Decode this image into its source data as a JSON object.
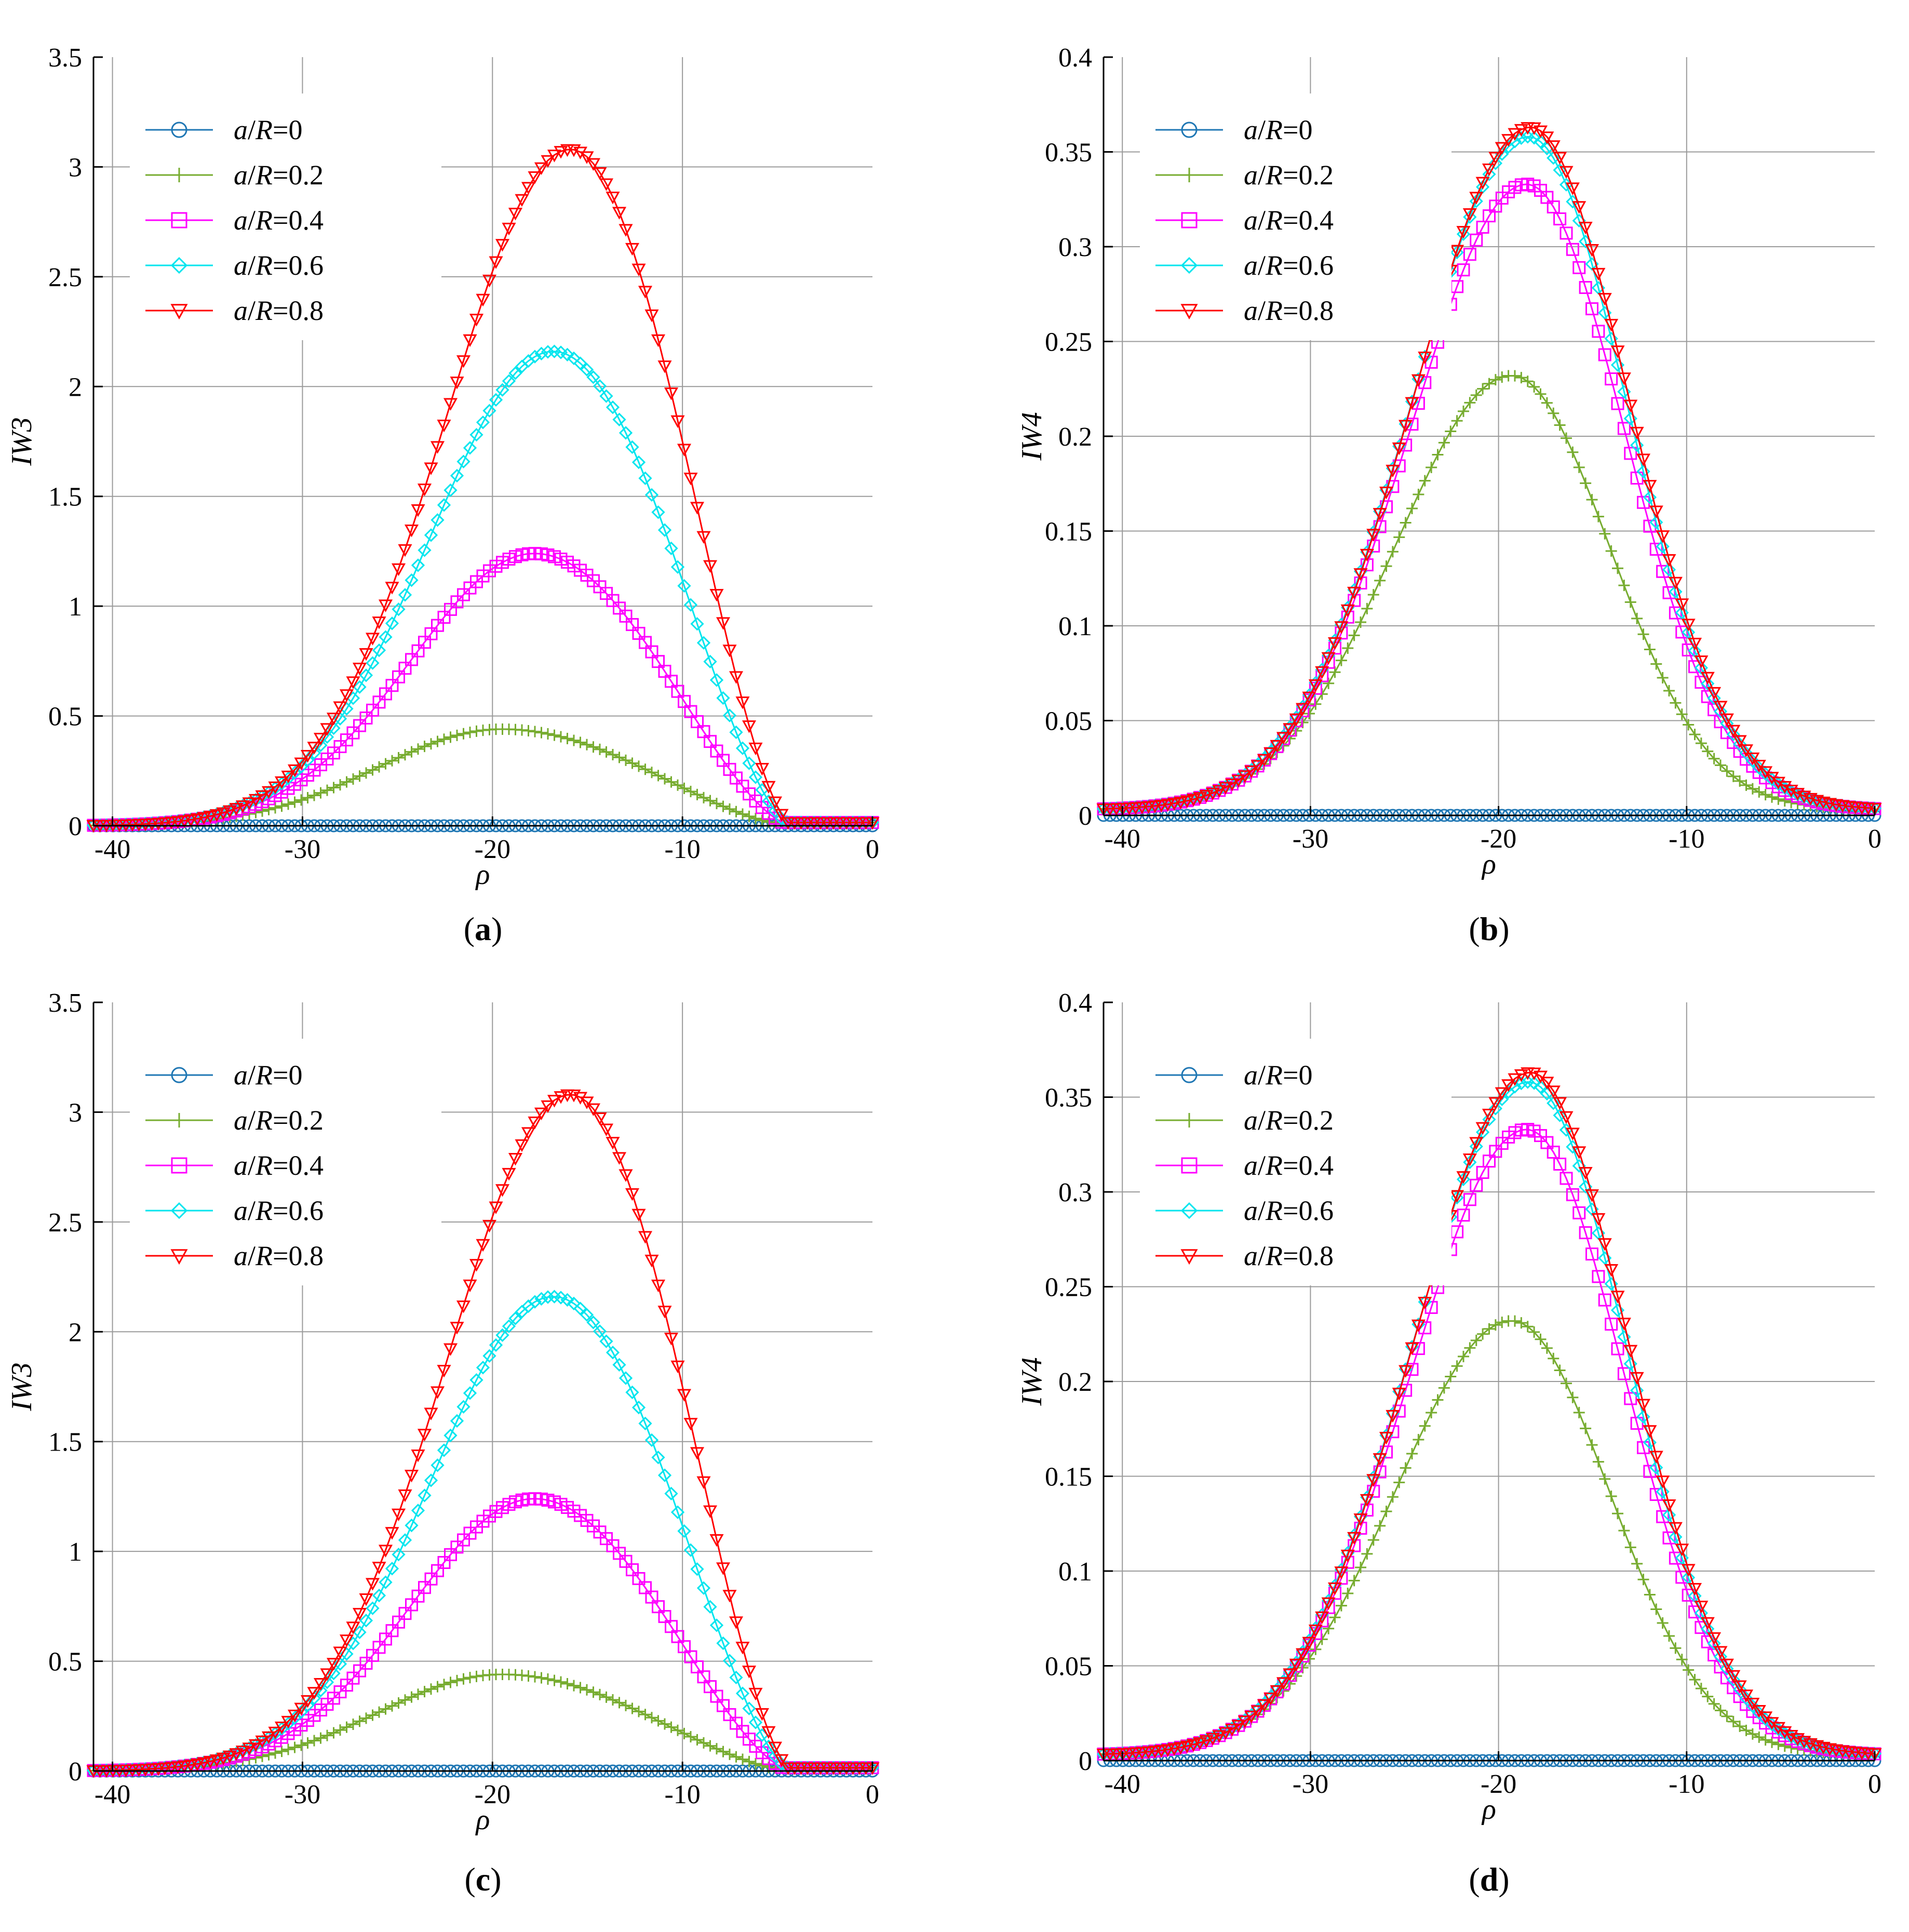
{
  "figure": {
    "panels": [
      "a",
      "b",
      "c",
      "d"
    ]
  },
  "chart_data": [
    {
      "id": "a",
      "type": "line",
      "caption": "a",
      "xlabel": "ρ",
      "ylabel": "IW3",
      "xlim": [
        -41,
        0
      ],
      "ylim": [
        0,
        3.5
      ],
      "xticks": [
        -40,
        -30,
        -20,
        -10,
        0
      ],
      "xtick_labels": [
        "-40",
        "-30",
        "-20",
        "-10",
        "0"
      ],
      "yticks": [
        0,
        0.5,
        1,
        1.5,
        2,
        2.5,
        3,
        3.5
      ],
      "ytick_labels": [
        "0",
        "0.5",
        "1",
        "1.5",
        "2",
        "2.5",
        "3",
        "3.5"
      ],
      "grid": true,
      "legend_position": "top-left",
      "curve_model": {
        "kind": "skewed-peak",
        "zero_at": -4.2,
        "sigma_left": 6.5,
        "floor_right": 0.015
      },
      "series": [
        {
          "name": "a/R=0",
          "prefix": "a",
          "suffix": "=0",
          "color": "#1f77b4",
          "marker": "circle",
          "peak": 0.0,
          "peak_x": -18.0
        },
        {
          "name": "a/R=0.2",
          "prefix": "a",
          "suffix": "=0.2",
          "color": "#77ac30",
          "marker": "plus",
          "peak": 0.44,
          "peak_x": -19.5
        },
        {
          "name": "a/R=0.4",
          "prefix": "a",
          "suffix": "=0.4",
          "color": "#ff00ff",
          "marker": "square",
          "peak": 1.24,
          "peak_x": -17.8
        },
        {
          "name": "a/R=0.6",
          "prefix": "a",
          "suffix": "=0.6",
          "color": "#00e5ee",
          "marker": "diamond",
          "peak": 2.16,
          "peak_x": -16.8
        },
        {
          "name": "a/R=0.8",
          "prefix": "a",
          "suffix": "=0.8",
          "color": "#ff0000",
          "marker": "triangle-down",
          "peak": 3.08,
          "peak_x": -15.9
        }
      ]
    },
    {
      "id": "b",
      "type": "line",
      "caption": "b",
      "xlabel": "ρ",
      "ylabel": "IW4",
      "xlim": [
        -41,
        0
      ],
      "ylim": [
        0,
        0.4
      ],
      "xticks": [
        -40,
        -30,
        -20,
        -10,
        0
      ],
      "xtick_labels": [
        "-40",
        "-30",
        "-20",
        "-10",
        "0"
      ],
      "yticks": [
        0,
        0.05,
        0.1,
        0.15,
        0.2,
        0.25,
        0.3,
        0.35,
        0.4
      ],
      "ytick_labels": [
        "0",
        "0.05",
        "0.1",
        "0.15",
        "0.2",
        "0.25",
        "0.3",
        "0.35",
        "0.4"
      ],
      "grid": true,
      "legend_position": "top-left",
      "curve_model": {
        "kind": "gaussian",
        "sigma_left": 6.2,
        "sigma_right": 5.2,
        "baseline": 0.003
      },
      "series": [
        {
          "name": "a/R=0",
          "prefix": "a",
          "suffix": "=0",
          "color": "#1f77b4",
          "marker": "circle",
          "peak": 0.0,
          "peak_x": -19.0
        },
        {
          "name": "a/R=0.2",
          "prefix": "a",
          "suffix": "=0.2",
          "color": "#77ac30",
          "marker": "plus",
          "peak": 0.232,
          "peak_x": -19.3
        },
        {
          "name": "a/R=0.4",
          "prefix": "a",
          "suffix": "=0.4",
          "color": "#ff00ff",
          "marker": "square",
          "peak": 0.333,
          "peak_x": -18.5
        },
        {
          "name": "a/R=0.6",
          "prefix": "a",
          "suffix": "=0.6",
          "color": "#00e5ee",
          "marker": "diamond",
          "peak": 0.358,
          "peak_x": -18.4
        },
        {
          "name": "a/R=0.8",
          "prefix": "a",
          "suffix": "=0.8",
          "color": "#ff0000",
          "marker": "triangle-down",
          "peak": 0.363,
          "peak_x": -18.3
        }
      ]
    },
    {
      "id": "c",
      "type": "line",
      "caption": "c",
      "xlabel": "ρ",
      "ylabel": "IW3",
      "xlim": [
        -41,
        0
      ],
      "ylim": [
        0,
        3.5
      ],
      "xticks": [
        -40,
        -30,
        -20,
        -10,
        0
      ],
      "xtick_labels": [
        "-40",
        "-30",
        "-20",
        "-10",
        "0"
      ],
      "yticks": [
        0,
        0.5,
        1,
        1.5,
        2,
        2.5,
        3,
        3.5
      ],
      "ytick_labels": [
        "0",
        "0.5",
        "1",
        "1.5",
        "2",
        "2.5",
        "3",
        "3.5"
      ],
      "grid": true,
      "legend_position": "top-left",
      "curve_model": {
        "kind": "skewed-peak",
        "zero_at": -4.2,
        "sigma_left": 6.5,
        "floor_right": 0.015
      },
      "series": [
        {
          "name": "a/R=0",
          "prefix": "a",
          "suffix": "=0",
          "color": "#1f77b4",
          "marker": "circle",
          "peak": 0.0,
          "peak_x": -18.0
        },
        {
          "name": "a/R=0.2",
          "prefix": "a",
          "suffix": "=0.2",
          "color": "#77ac30",
          "marker": "plus",
          "peak": 0.44,
          "peak_x": -19.5
        },
        {
          "name": "a/R=0.4",
          "prefix": "a",
          "suffix": "=0.4",
          "color": "#ff00ff",
          "marker": "square",
          "peak": 1.24,
          "peak_x": -17.8
        },
        {
          "name": "a/R=0.6",
          "prefix": "a",
          "suffix": "=0.6",
          "color": "#00e5ee",
          "marker": "diamond",
          "peak": 2.16,
          "peak_x": -16.8
        },
        {
          "name": "a/R=0.8",
          "prefix": "a",
          "suffix": "=0.8",
          "color": "#ff0000",
          "marker": "triangle-down",
          "peak": 3.08,
          "peak_x": -15.9
        }
      ]
    },
    {
      "id": "d",
      "type": "line",
      "caption": "d",
      "xlabel": "ρ",
      "ylabel": "IW4",
      "xlim": [
        -41,
        0
      ],
      "ylim": [
        0,
        0.4
      ],
      "xticks": [
        -40,
        -30,
        -20,
        -10,
        0
      ],
      "xtick_labels": [
        "-40",
        "-30",
        "-20",
        "-10",
        "0"
      ],
      "yticks": [
        0,
        0.05,
        0.1,
        0.15,
        0.2,
        0.25,
        0.3,
        0.35,
        0.4
      ],
      "ytick_labels": [
        "0",
        "0.05",
        "0.1",
        "0.15",
        "0.2",
        "0.25",
        "0.3",
        "0.35",
        "0.4"
      ],
      "grid": true,
      "legend_position": "top-left",
      "curve_model": {
        "kind": "gaussian",
        "sigma_left": 6.2,
        "sigma_right": 5.2,
        "baseline": 0.003
      },
      "series": [
        {
          "name": "a/R=0",
          "prefix": "a",
          "suffix": "=0",
          "color": "#1f77b4",
          "marker": "circle",
          "peak": 0.0,
          "peak_x": -19.0
        },
        {
          "name": "a/R=0.2",
          "prefix": "a",
          "suffix": "=0.2",
          "color": "#77ac30",
          "marker": "plus",
          "peak": 0.232,
          "peak_x": -19.3
        },
        {
          "name": "a/R=0.4",
          "prefix": "a",
          "suffix": "=0.4",
          "color": "#ff00ff",
          "marker": "square",
          "peak": 0.333,
          "peak_x": -18.5
        },
        {
          "name": "a/R=0.6",
          "prefix": "a",
          "suffix": "=0.6",
          "color": "#00e5ee",
          "marker": "diamond",
          "peak": 0.358,
          "peak_x": -18.4
        },
        {
          "name": "a/R=0.8",
          "prefix": "a",
          "suffix": "=0.8",
          "color": "#ff0000",
          "marker": "triangle-down",
          "peak": 0.363,
          "peak_x": -18.3
        }
      ]
    }
  ]
}
